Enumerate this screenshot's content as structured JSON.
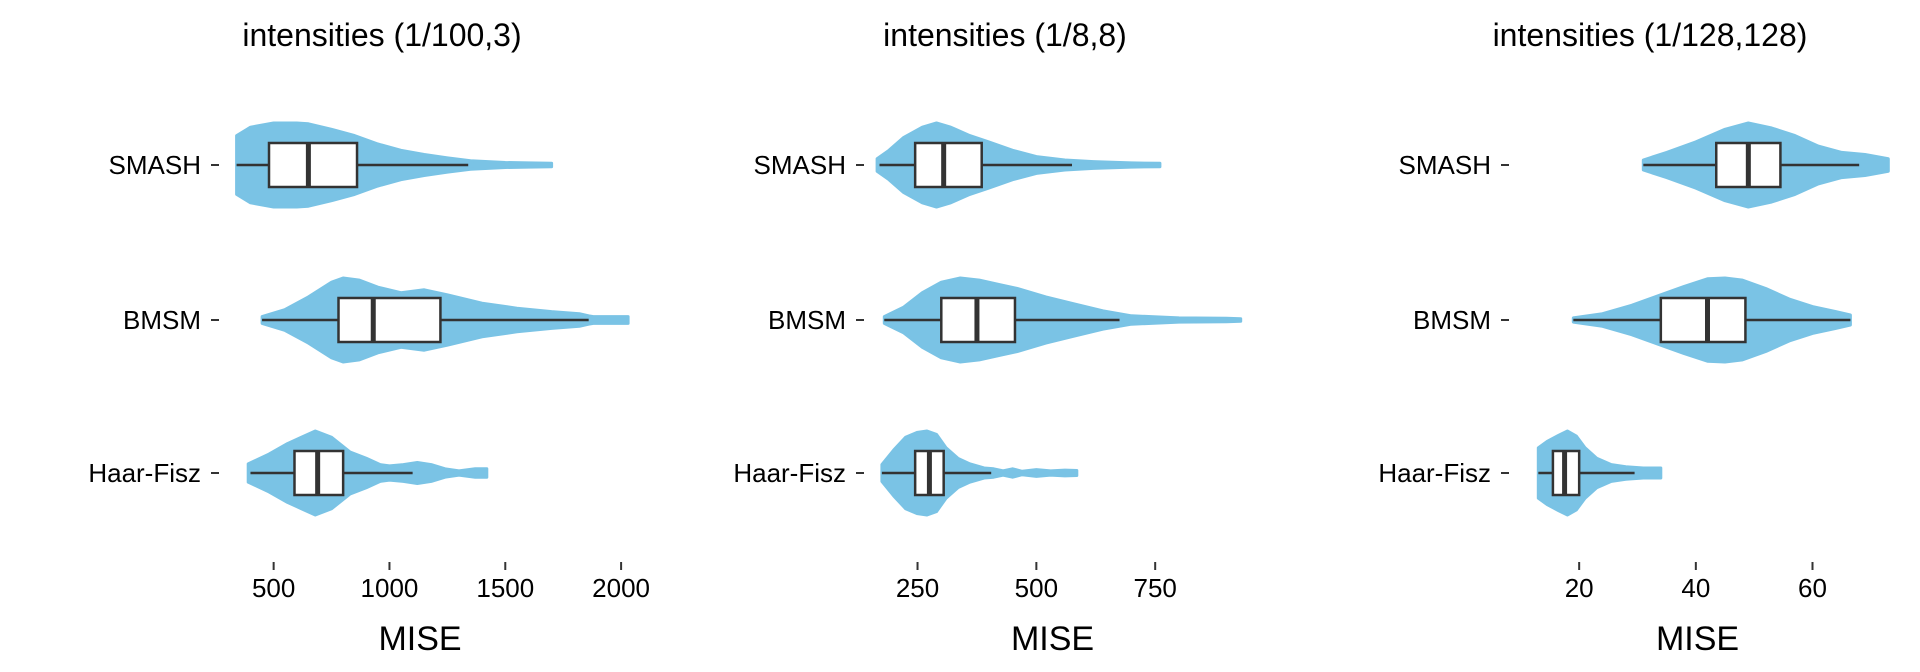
{
  "chart_data": [
    {
      "type": "violin",
      "title": "intensities (1/100,3)",
      "xlabel": "MISE",
      "ylabel": "",
      "xlim": [
        290,
        2060
      ],
      "xticks": [
        500,
        1000,
        1500,
        2000
      ],
      "xtick_labels": [
        "500",
        "1000",
        "1500",
        "2000"
      ],
      "categories": [
        "SMASH",
        "BMSM",
        "Haar-Fisz"
      ],
      "fill_color": "#7AC3E5",
      "series": [
        {
          "name": "SMASH",
          "box": {
            "whisker_low": 340,
            "q1": 480,
            "median": 650,
            "q3": 860,
            "whisker_high": 1340
          },
          "violin_profile": [
            [
              340,
              0.7
            ],
            [
              400,
              0.9
            ],
            [
              500,
              1.0
            ],
            [
              600,
              1.0
            ],
            [
              650,
              0.98
            ],
            [
              750,
              0.85
            ],
            [
              850,
              0.7
            ],
            [
              950,
              0.5
            ],
            [
              1050,
              0.35
            ],
            [
              1150,
              0.25
            ],
            [
              1250,
              0.17
            ],
            [
              1350,
              0.1
            ],
            [
              1500,
              0.06
            ],
            [
              1600,
              0.05
            ],
            [
              1700,
              0.04
            ]
          ]
        },
        {
          "name": "BMSM",
          "box": {
            "whisker_low": 450,
            "q1": 780,
            "median": 930,
            "q3": 1220,
            "whisker_high": 1860
          },
          "violin_profile": [
            [
              450,
              0.08
            ],
            [
              550,
              0.25
            ],
            [
              650,
              0.55
            ],
            [
              750,
              0.9
            ],
            [
              800,
              1.0
            ],
            [
              870,
              0.95
            ],
            [
              950,
              0.78
            ],
            [
              1050,
              0.65
            ],
            [
              1150,
              0.72
            ],
            [
              1250,
              0.6
            ],
            [
              1400,
              0.4
            ],
            [
              1550,
              0.28
            ],
            [
              1700,
              0.2
            ],
            [
              1820,
              0.15
            ],
            [
              1860,
              0.1
            ],
            [
              1880,
              0.08
            ],
            [
              2030,
              0.08
            ]
          ]
        },
        {
          "name": "Haar-Fisz",
          "box": {
            "whisker_low": 400,
            "q1": 590,
            "median": 690,
            "q3": 800,
            "whisker_high": 1100
          },
          "violin_profile": [
            [
              390,
              0.22
            ],
            [
              480,
              0.45
            ],
            [
              560,
              0.7
            ],
            [
              620,
              0.85
            ],
            [
              680,
              1.0
            ],
            [
              750,
              0.85
            ],
            [
              830,
              0.5
            ],
            [
              900,
              0.35
            ],
            [
              960,
              0.2
            ],
            [
              1000,
              0.17
            ],
            [
              1060,
              0.2
            ],
            [
              1120,
              0.25
            ],
            [
              1180,
              0.2
            ],
            [
              1240,
              0.1
            ],
            [
              1300,
              0.05
            ],
            [
              1370,
              0.1
            ],
            [
              1420,
              0.1
            ]
          ]
        }
      ]
    },
    {
      "type": "violin",
      "title": "intensities (1/8,8)",
      "xlabel": "MISE",
      "ylabel": "",
      "xlim": [
        150,
        960
      ],
      "xticks": [
        250,
        500,
        750
      ],
      "xtick_labels": [
        "250",
        "500",
        "750"
      ],
      "categories": [
        "SMASH",
        "BMSM",
        "Haar-Fisz"
      ],
      "fill_color": "#7AC3E5",
      "series": [
        {
          "name": "SMASH",
          "box": {
            "whisker_low": 170,
            "q1": 245,
            "median": 305,
            "q3": 385,
            "whisker_high": 575
          },
          "violin_profile": [
            [
              165,
              0.15
            ],
            [
              190,
              0.35
            ],
            [
              220,
              0.65
            ],
            [
              260,
              0.9
            ],
            [
              290,
              1.0
            ],
            [
              320,
              0.9
            ],
            [
              360,
              0.7
            ],
            [
              400,
              0.55
            ],
            [
              450,
              0.35
            ],
            [
              500,
              0.2
            ],
            [
              560,
              0.12
            ],
            [
              620,
              0.08
            ],
            [
              700,
              0.05
            ],
            [
              760,
              0.04
            ]
          ]
        },
        {
          "name": "BMSM",
          "box": {
            "whisker_low": 180,
            "q1": 300,
            "median": 375,
            "q3": 455,
            "whisker_high": 675
          },
          "violin_profile": [
            [
              180,
              0.08
            ],
            [
              220,
              0.3
            ],
            [
              260,
              0.65
            ],
            [
              300,
              0.9
            ],
            [
              340,
              1.0
            ],
            [
              380,
              0.95
            ],
            [
              420,
              0.85
            ],
            [
              460,
              0.75
            ],
            [
              520,
              0.55
            ],
            [
              580,
              0.38
            ],
            [
              640,
              0.22
            ],
            [
              700,
              0.1
            ],
            [
              800,
              0.05
            ],
            [
              900,
              0.04
            ],
            [
              930,
              0.03
            ]
          ]
        },
        {
          "name": "Haar-Fisz",
          "box": {
            "whisker_low": 175,
            "q1": 245,
            "median": 275,
            "q3": 305,
            "whisker_high": 405
          },
          "violin_profile": [
            [
              175,
              0.2
            ],
            [
              200,
              0.55
            ],
            [
              225,
              0.85
            ],
            [
              250,
              0.97
            ],
            [
              270,
              1.0
            ],
            [
              290,
              0.92
            ],
            [
              310,
              0.6
            ],
            [
              335,
              0.35
            ],
            [
              360,
              0.22
            ],
            [
              390,
              0.12
            ],
            [
              410,
              0.1
            ],
            [
              430,
              0.05
            ],
            [
              450,
              0.1
            ],
            [
              470,
              0.04
            ],
            [
              500,
              0.08
            ],
            [
              530,
              0.05
            ],
            [
              560,
              0.07
            ],
            [
              585,
              0.06
            ]
          ]
        }
      ]
    },
    {
      "type": "violin",
      "title": "intensities (1/128,128)",
      "xlabel": "MISE",
      "ylabel": "",
      "xlim": [
        9,
        75
      ],
      "xticks": [
        20,
        40,
        60
      ],
      "xtick_labels": [
        "20",
        "40",
        "60"
      ],
      "categories": [
        "SMASH",
        "BMSM",
        "Haar-Fisz"
      ],
      "fill_color": "#7AC3E5",
      "series": [
        {
          "name": "SMASH",
          "box": {
            "whisker_low": 31,
            "q1": 43.5,
            "median": 49,
            "q3": 54.5,
            "whisker_high": 68
          },
          "violin_profile": [
            [
              31,
              0.12
            ],
            [
              35,
              0.3
            ],
            [
              40,
              0.55
            ],
            [
              45,
              0.85
            ],
            [
              49,
              1.0
            ],
            [
              53,
              0.88
            ],
            [
              57,
              0.7
            ],
            [
              61,
              0.45
            ],
            [
              65,
              0.3
            ],
            [
              69,
              0.25
            ],
            [
              71,
              0.2
            ],
            [
              73,
              0.15
            ]
          ]
        },
        {
          "name": "BMSM",
          "box": {
            "whisker_low": 19,
            "q1": 34,
            "median": 42,
            "q3": 48.5,
            "whisker_high": 66.5
          },
          "violin_profile": [
            [
              19,
              0.05
            ],
            [
              24,
              0.15
            ],
            [
              29,
              0.35
            ],
            [
              34,
              0.6
            ],
            [
              38,
              0.8
            ],
            [
              42,
              0.98
            ],
            [
              45,
              1.0
            ],
            [
              48,
              0.95
            ],
            [
              52,
              0.75
            ],
            [
              56,
              0.5
            ],
            [
              60,
              0.32
            ],
            [
              64,
              0.2
            ],
            [
              66.5,
              0.12
            ]
          ]
        },
        {
          "name": "Haar-Fisz",
          "box": {
            "whisker_low": 13,
            "q1": 15.5,
            "median": 17.5,
            "q3": 20,
            "whisker_high": 29.5
          },
          "violin_profile": [
            [
              13,
              0.6
            ],
            [
              14.5,
              0.75
            ],
            [
              16.5,
              0.9
            ],
            [
              18,
              1.0
            ],
            [
              19.5,
              0.88
            ],
            [
              21,
              0.6
            ],
            [
              23,
              0.35
            ],
            [
              25.5,
              0.2
            ],
            [
              28,
              0.15
            ],
            [
              31,
              0.12
            ],
            [
              34,
              0.12
            ]
          ]
        }
      ]
    }
  ]
}
